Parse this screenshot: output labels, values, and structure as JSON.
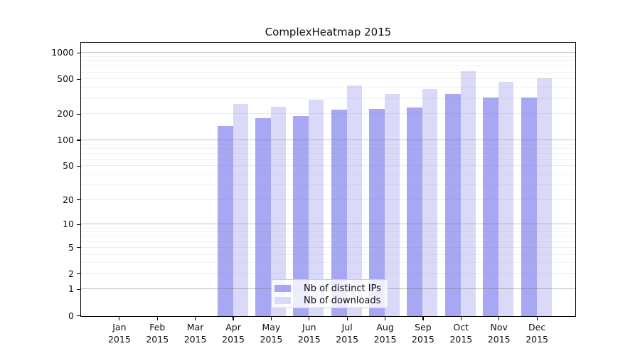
{
  "title": "ComplexHeatmap 2015",
  "colors": {
    "background": "#ffffff",
    "frame": "#000000",
    "text": "#111111",
    "grid_decade": "rgba(120,120,120,0.45)",
    "grid_sub": "rgba(150,150,150,0.18)",
    "grid_minor": "rgba(150,150,150,0.12)",
    "legend_border": "#cccccc"
  },
  "chart_data": {
    "type": "bar",
    "title": "ComplexHeatmap 2015",
    "y_scale": "log10(1+x)",
    "grid": "on",
    "legend_position": "lower center",
    "categories": [
      "Jan",
      "Feb",
      "Mar",
      "Apr",
      "May",
      "Jun",
      "Jul",
      "Aug",
      "Sep",
      "Oct",
      "Nov",
      "Dec"
    ],
    "x_tick_second_line": "2015",
    "series": [
      {
        "id": "distinct-ips",
        "name": "Nb of distinct IPs",
        "color": "#a7a7f3",
        "values": [
          0,
          0,
          0,
          148,
          180,
          192,
          228,
          233,
          240,
          345,
          315,
          310
        ]
      },
      {
        "id": "downloads",
        "name": "Nb of downloads",
        "color": "#dadaf8",
        "values": [
          0,
          0,
          0,
          265,
          245,
          295,
          430,
          340,
          390,
          620,
          470,
          515
        ]
      }
    ],
    "yticks": [
      1000,
      500,
      200,
      100,
      50,
      20,
      10,
      5,
      2,
      1,
      0
    ],
    "minor_gridlines": [
      3,
      4,
      6,
      7,
      8,
      9,
      30,
      40,
      60,
      70,
      80,
      90,
      300,
      400,
      600,
      700,
      800,
      900
    ],
    "ylim": [
      0,
      1300
    ],
    "xlabel": "",
    "ylabel": ""
  }
}
